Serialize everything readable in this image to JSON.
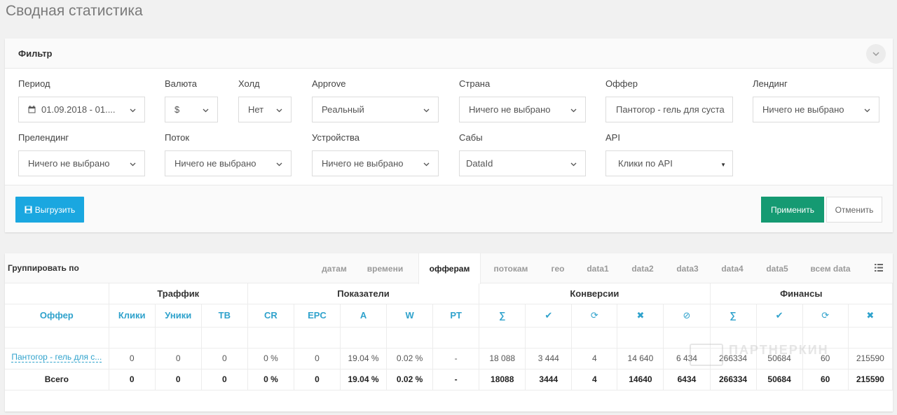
{
  "page": {
    "title": "Сводная статистика"
  },
  "filter": {
    "title": "Фильтр",
    "fields": {
      "period": {
        "label": "Период",
        "value": "01.09.2018 - 01...."
      },
      "currency": {
        "label": "Валюта",
        "value": "$"
      },
      "hold": {
        "label": "Холд",
        "value": "Нет"
      },
      "approve": {
        "label": "Approve",
        "value": "Реальный"
      },
      "country": {
        "label": "Страна",
        "value": "Ничего не выбрано"
      },
      "offer": {
        "label": "Оффер",
        "value": "Пантогор - гель для суста"
      },
      "landing": {
        "label": "Лендинг",
        "value": "Ничего не выбрано"
      },
      "prelanding": {
        "label": "Прелендинг",
        "value": "Ничего не выбрано"
      },
      "stream": {
        "label": "Поток",
        "value": "Ничего не выбрано"
      },
      "devices": {
        "label": "Устройства",
        "value": "Ничего не выбрано"
      },
      "subs": {
        "label": "Сабы",
        "value": "DataId"
      },
      "api": {
        "label": "API",
        "value": "Клики по API"
      }
    },
    "export_label": "Выгрузить",
    "apply_label": "Применить",
    "cancel_label": "Отменить"
  },
  "grouping": {
    "label": "Группировать по",
    "tabs": [
      "датам",
      "времени",
      "офферам",
      "потокам",
      "гео",
      "data1",
      "data2",
      "data3",
      "data4",
      "data5",
      "всем data"
    ],
    "active_tab": "офферам"
  },
  "table": {
    "groups": [
      "Траффик",
      "Показатели",
      "Конверсии",
      "Финансы"
    ],
    "columns": [
      "Оффер",
      "Клики",
      "Уники",
      "ТВ",
      "CR",
      "EPC",
      "A",
      "W",
      "PT",
      "∑",
      "✔",
      "⟳",
      "✖",
      "⊘",
      "∑",
      "✔",
      "⟳",
      "✖"
    ],
    "icons": {
      "conv_sum": "sum-icon",
      "conv_approved": "check-icon",
      "conv_hold": "sync-icon",
      "conv_rejected": "x-icon",
      "conv_trash": "ban-icon",
      "fin_sum": "sum-icon",
      "fin_approved": "check-icon",
      "fin_hold": "sync-icon",
      "fin_rejected": "x-icon"
    },
    "rows": [
      [
        "Пантогор - гель для с...",
        "0",
        "0",
        "0",
        "0 %",
        "0",
        "19.04 %",
        "0.02 %",
        "-",
        "18 088",
        "3 444",
        "4",
        "14 640",
        "6 434",
        "266334",
        "50684",
        "60",
        "215590"
      ]
    ],
    "total": [
      "Всего",
      "0",
      "0",
      "0",
      "0 %",
      "0",
      "19.04 %",
      "0.02 %",
      "-",
      "18088",
      "3444",
      "4",
      "14640",
      "6434",
      "266334",
      "50684",
      "60",
      "215590"
    ]
  },
  "colors": {
    "accent": "#2fa2cc",
    "export_button": "#1aa7e0",
    "apply_button": "#159a72"
  },
  "watermark": "ПАРТНЕРКИН"
}
